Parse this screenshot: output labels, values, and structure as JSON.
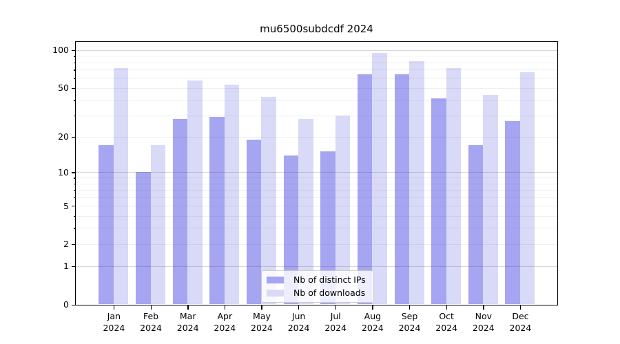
{
  "title": "mu6500subdcdf 2024",
  "chart_data": {
    "type": "bar",
    "title": "mu6500subdcdf 2024",
    "categories": [
      "Jan",
      "Feb",
      "Mar",
      "Apr",
      "May",
      "Jun",
      "Jul",
      "Aug",
      "Sep",
      "Oct",
      "Nov",
      "Dec"
    ],
    "category_year": "2024",
    "series": [
      {
        "name": "Nb of distinct IPs",
        "color": "#a5a5f2",
        "values": [
          17,
          10,
          28,
          29,
          19,
          14,
          15,
          64,
          64,
          41,
          17,
          27
        ]
      },
      {
        "name": "Nb of downloads",
        "color": "#d9d9f8",
        "values": [
          72,
          17,
          57,
          53,
          42,
          28,
          30,
          95,
          82,
          72,
          44,
          67
        ]
      }
    ],
    "y_scale": "log10(1+y)",
    "y_ticks": [
      0,
      1,
      2,
      5,
      10,
      20,
      50,
      100
    ],
    "y_minor_ticks": [
      3,
      4,
      6,
      7,
      8,
      9,
      30,
      40,
      60,
      70,
      80,
      90
    ],
    "gridlines_light": [
      2,
      3,
      4,
      5,
      6,
      7,
      8,
      9,
      20,
      30,
      40,
      50,
      60,
      70,
      80,
      90
    ],
    "gridlines_decade": [
      1,
      10,
      100
    ],
    "ylim": [
      0,
      117
    ],
    "grid": "on",
    "legend_position": "bottom-center"
  }
}
